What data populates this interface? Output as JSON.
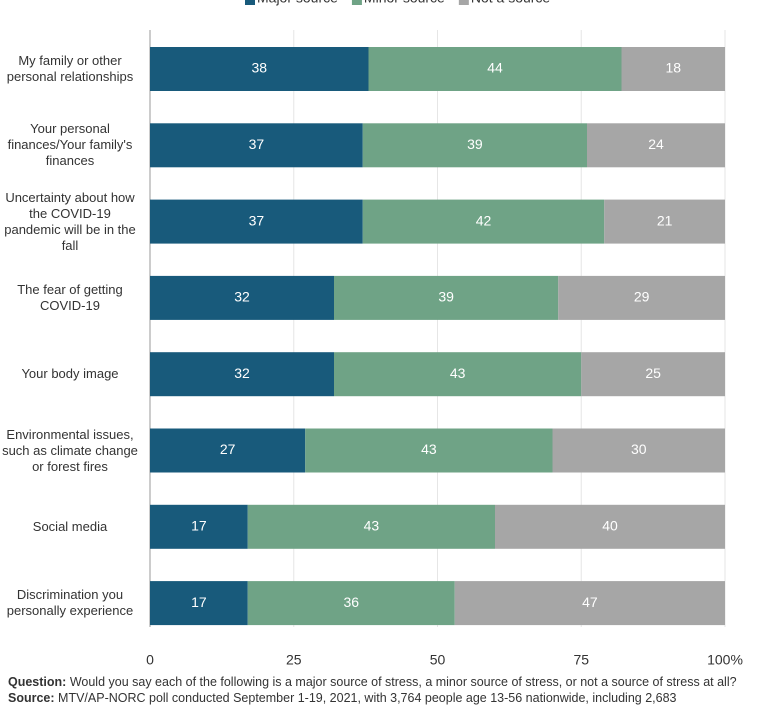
{
  "chart_data": {
    "type": "stacked-barh",
    "categories": [
      "My family or other personal relationships",
      "Your personal finances/Your family's finances",
      "Uncertainty about how the COVID-19 pandemic will be in the fall",
      "The fear of getting COVID-19",
      "Your body image",
      "Environmental issues, such as climate change or forest fires",
      "Social media",
      "Discrimination you personally experience"
    ],
    "series": [
      {
        "name": "Major source",
        "color": "#185a7b",
        "values": [
          38,
          37,
          37,
          32,
          32,
          27,
          17,
          17
        ]
      },
      {
        "name": "Minor source",
        "color": "#6fa386",
        "values": [
          44,
          39,
          42,
          39,
          43,
          43,
          43,
          36
        ]
      },
      {
        "name": "Not a source",
        "color": "#a6a6a6",
        "values": [
          18,
          24,
          21,
          29,
          25,
          30,
          40,
          47
        ]
      }
    ],
    "xlim": [
      0,
      100
    ],
    "xticks": [
      0,
      25,
      50,
      75,
      {
        "value": 100,
        "label": "100%"
      }
    ],
    "grid": true,
    "legend": "top",
    "question_label": "Question:",
    "question_text": "Would you say each of the following is a major source of stress, a minor source of stress, or not a source of stress at all?",
    "source_label": "Source:",
    "source_text": "MTV/AP-NORC poll conducted September 1-19, 2021, with 3,764 people age 13-56 nationwide, including 2,683"
  }
}
